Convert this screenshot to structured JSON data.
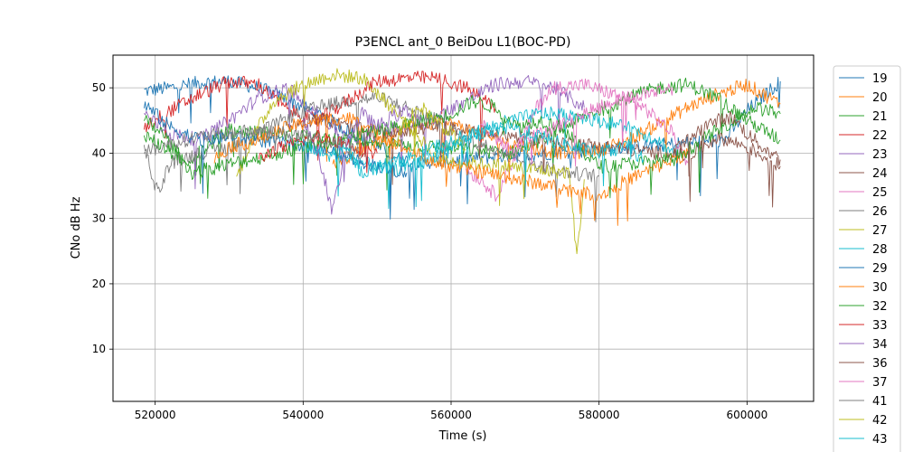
{
  "chart_data": {
    "type": "line",
    "title": "P3ENCL ant_0 BeiDou L1(BOC-PD)",
    "xlabel": "Time (s)",
    "ylabel": "CNo dB Hz",
    "xlim": [
      514300,
      609000
    ],
    "ylim": [
      2,
      55
    ],
    "x_ticks": [
      520000,
      540000,
      560000,
      580000,
      600000
    ],
    "x_tick_labels": [
      "520000",
      "540000",
      "560000",
      "580000",
      "600000"
    ],
    "y_ticks": [
      10,
      20,
      30,
      40,
      50
    ],
    "y_tick_labels": [
      "10",
      "20",
      "30",
      "40",
      "50"
    ],
    "grid": true,
    "legend_location": "outside-right",
    "series": [
      {
        "name": "19",
        "color": "#1f77b4",
        "x": [
          518500,
          522000,
          526000,
          530000,
          534000,
          538000,
          542000,
          546000,
          550000,
          553000,
          555000,
          597000,
          600000,
          604500
        ],
        "values": [
          49.5,
          50.0,
          50.8,
          51.0,
          50.0,
          48.2,
          46.0,
          43.5,
          41.0,
          39.2,
          38.5,
          42.0,
          46.5,
          51.0
        ]
      },
      {
        "name": "20",
        "color": "#ff7f0e",
        "x": [
          544000,
          548000,
          552000,
          556000,
          560000,
          564000,
          568000,
          572000,
          576000,
          580000,
          584000,
          588000,
          592000,
          596000,
          600000,
          604500
        ],
        "values": [
          38.5,
          40.5,
          43.0,
          44.5,
          44.5,
          43.0,
          41.5,
          40.5,
          40.0,
          40.5,
          42.0,
          44.5,
          47.0,
          49.0,
          50.5,
          47.5
        ]
      },
      {
        "name": "21",
        "color": "#2ca02c",
        "x": [
          518500,
          521000,
          524000,
          527000,
          530000,
          568000,
          572000,
          576000,
          580000,
          584000,
          588000,
          592000,
          596000,
          600000,
          604500
        ],
        "values": [
          43.0,
          41.0,
          38.5,
          41.0,
          43.5,
          40.0,
          42.0,
          44.5,
          46.5,
          48.5,
          50.0,
          50.5,
          48.5,
          45.0,
          42.0
        ]
      },
      {
        "name": "22",
        "color": "#d62728",
        "x": [
          518500,
          522000,
          526000,
          530000,
          534000,
          538000,
          542000,
          546000,
          550000,
          554000,
          558000,
          562000,
          566000
        ],
        "values": [
          44.0,
          46.5,
          49.0,
          51.0,
          50.5,
          46.5,
          45.0,
          48.0,
          51.0,
          51.5,
          51.5,
          50.0,
          47.0
        ]
      },
      {
        "name": "23",
        "color": "#9467bd",
        "x": [
          518500,
          522000,
          526000,
          530000,
          534000,
          538000,
          542000,
          546000,
          550000,
          558000,
          562000,
          566000,
          570000,
          574000,
          578000
        ],
        "values": [
          46.0,
          43.0,
          42.0,
          45.0,
          48.5,
          50.0,
          46.0,
          42.0,
          43.0,
          45.5,
          48.0,
          50.5,
          51.0,
          50.0,
          47.0
        ]
      },
      {
        "name": "24",
        "color": "#8c564b",
        "x": [
          538000,
          542000,
          546000,
          550000,
          554000,
          558000,
          592000,
          596000,
          600000,
          604500
        ],
        "values": [
          44.0,
          45.5,
          44.0,
          43.0,
          43.5,
          44.0,
          39.5,
          42.5,
          41.0,
          38.0
        ]
      },
      {
        "name": "25",
        "color": "#e377c2",
        "x": [
          562000,
          564000,
          566000,
          568000,
          570000,
          572000,
          574000,
          578000,
          582000,
          586000,
          590000,
          592000
        ],
        "values": [
          37.5,
          36.0,
          33.5,
          38.0,
          43.0,
          48.0,
          50.0,
          50.5,
          49.0,
          47.0,
          43.0,
          38.5
        ]
      },
      {
        "name": "26",
        "color": "#7f7f7f",
        "x": [
          518500,
          519500,
          520500,
          522000,
          526000,
          530000,
          534000,
          538000,
          542000,
          546000,
          550000,
          554000,
          558000,
          562000,
          568000,
          572000,
          576000,
          580000
        ],
        "values": [
          42.0,
          36.5,
          34.0,
          38.5,
          40.0,
          41.0,
          43.0,
          45.5,
          47.0,
          48.0,
          48.5,
          47.0,
          45.0,
          42.0,
          40.0,
          38.0,
          37.0,
          36.5
        ]
      },
      {
        "name": "27",
        "color": "#bcbd22",
        "x": [
          531000,
          533000,
          536000,
          540000,
          544000,
          548000,
          552000,
          556000,
          558000,
          576000,
          577000,
          578000
        ],
        "values": [
          36.0,
          42.0,
          48.0,
          50.5,
          52.0,
          51.5,
          47.0,
          42.0,
          39.0,
          37.0,
          24.0,
          36.0
        ]
      },
      {
        "name": "28",
        "color": "#17becf",
        "x": [
          544000,
          548000,
          552000,
          556000,
          560000,
          564000,
          568000,
          572000,
          576000,
          580000,
          584000,
          588000,
          590000
        ],
        "values": [
          40.0,
          38.5,
          37.5,
          38.5,
          41.0,
          43.5,
          45.0,
          46.0,
          46.0,
          45.0,
          44.0,
          42.0,
          40.0
        ]
      },
      {
        "name": "29",
        "color": "#1f77b4",
        "x": [
          518500,
          522000,
          526000,
          530000,
          534000,
          538000,
          542000,
          546000,
          550000,
          554000
        ],
        "values": [
          47.5,
          44.0,
          42.0,
          42.5,
          42.0,
          41.5,
          41.0,
          39.5,
          38.0,
          37.0
        ]
      },
      {
        "name": "30",
        "color": "#ff7f0e",
        "x": [
          528000,
          530000,
          534000,
          538000,
          542000,
          546000,
          550000,
          554000,
          558000,
          580000,
          584000,
          588000,
          592000
        ],
        "values": [
          39.0,
          41.0,
          42.0,
          44.0,
          45.0,
          45.5,
          43.0,
          40.5,
          38.5,
          33.5,
          36.0,
          38.0,
          40.0
        ]
      },
      {
        "name": "32",
        "color": "#2ca02c",
        "x": [
          518500,
          521000,
          523000,
          525000,
          560000,
          563000,
          566000,
          569000,
          572000,
          575000,
          578000,
          580000,
          590000,
          594000,
          598000,
          601000,
          604500
        ],
        "values": [
          45.0,
          43.0,
          40.0,
          37.0,
          46.0,
          48.0,
          47.0,
          44.0,
          45.0,
          44.0,
          40.0,
          38.0,
          39.0,
          42.0,
          45.0,
          47.0,
          46.0
        ]
      },
      {
        "name": "33",
        "color": "#d62728",
        "x": [
          534000,
          536000,
          538000,
          540000,
          542000,
          544000,
          546000,
          548000,
          550000
        ],
        "values": [
          39.0,
          40.5,
          41.0,
          42.0,
          42.5,
          42.0,
          41.5,
          40.5,
          40.0
        ]
      },
      {
        "name": "34",
        "color": "#9467bd",
        "x": [
          540000,
          542000,
          544000,
          546000,
          548000,
          550000,
          552000,
          554000,
          556000
        ],
        "values": [
          45.0,
          40.0,
          31.0,
          42.0,
          46.0,
          44.0,
          45.5,
          46.5,
          45.0
        ]
      },
      {
        "name": "36",
        "color": "#8c564b",
        "x": [
          590000,
          592000,
          594000,
          596000,
          598000,
          600000,
          602000,
          604500
        ],
        "values": [
          40.0,
          42.0,
          44.0,
          45.0,
          45.5,
          43.0,
          41.0,
          39.0
        ]
      },
      {
        "name": "37",
        "color": "#e377c2",
        "x": [
          564000,
          566000,
          568000,
          570000,
          574000,
          578000,
          582000,
          586000,
          590000
        ],
        "values": [
          45.0,
          42.0,
          40.5,
          42.0,
          44.0,
          46.0,
          48.0,
          49.0,
          50.0
        ]
      },
      {
        "name": "41",
        "color": "#7f7f7f",
        "x": [
          518500,
          522000,
          526000,
          530000,
          534000,
          538000,
          542000,
          546000,
          548000
        ],
        "values": [
          40.0,
          41.5,
          42.5,
          43.0,
          43.5,
          43.0,
          42.0,
          41.0,
          40.0
        ]
      },
      {
        "name": "42",
        "color": "#bcbd22",
        "x": [
          552000,
          554000,
          556000,
          558000,
          560000,
          562000
        ],
        "values": [
          41.0,
          45.0,
          47.0,
          45.0,
          43.0,
          40.5
        ]
      },
      {
        "name": "43",
        "color": "#17becf",
        "x": [
          540000,
          542000,
          544000,
          546000,
          548000,
          552000,
          556000,
          560000,
          564000,
          568000,
          572000,
          576000,
          580000,
          584000,
          586000
        ],
        "values": [
          41.0,
          40.0,
          39.5,
          40.5,
          37.0,
          38.5,
          40.0,
          42.0,
          43.0,
          44.0,
          42.5,
          41.0,
          40.0,
          41.0,
          39.0
        ]
      }
    ]
  }
}
